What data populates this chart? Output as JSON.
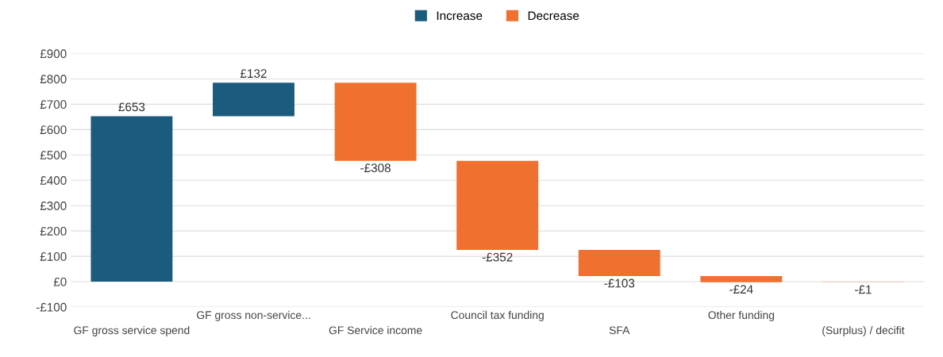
{
  "chart_data": {
    "type": "bar",
    "categories": [
      "GF gross service spend",
      "GF gross non-service...",
      "GF Service income",
      "Council tax funding",
      "SFA",
      "Other funding",
      "(Surplus) / decifit"
    ],
    "series": [
      {
        "name": "Increase",
        "color": "#1b5b7e",
        "base": [
          0,
          653,
          null,
          null,
          null,
          null,
          null
        ],
        "values": [
          653,
          132,
          null,
          null,
          null,
          null,
          null
        ],
        "value_labels": [
          "£653",
          "£132",
          null,
          null,
          null,
          null,
          null
        ]
      },
      {
        "name": "Decrease",
        "color": "#f07030",
        "base": [
          null,
          null,
          785,
          477,
          125,
          22,
          -2
        ],
        "values": [
          null,
          null,
          -308,
          -352,
          -103,
          -24,
          -1
        ],
        "value_labels": [
          null,
          null,
          "-£308",
          "-£352",
          "-£103",
          "-£24",
          "-£1"
        ]
      }
    ],
    "ylim": [
      -100,
      900
    ],
    "yticks": [
      {
        "value": -100,
        "label": "-£100"
      },
      {
        "value": 0,
        "label": "£0"
      },
      {
        "value": 100,
        "label": "£100"
      },
      {
        "value": 200,
        "label": "£200"
      },
      {
        "value": 300,
        "label": "£300"
      },
      {
        "value": 400,
        "label": "£400"
      },
      {
        "value": 500,
        "label": "£500"
      },
      {
        "value": 600,
        "label": "£600"
      },
      {
        "value": 700,
        "label": "£700"
      },
      {
        "value": 800,
        "label": "£800"
      },
      {
        "value": 900,
        "label": "£900"
      }
    ],
    "grid": "y",
    "legend": "top"
  }
}
